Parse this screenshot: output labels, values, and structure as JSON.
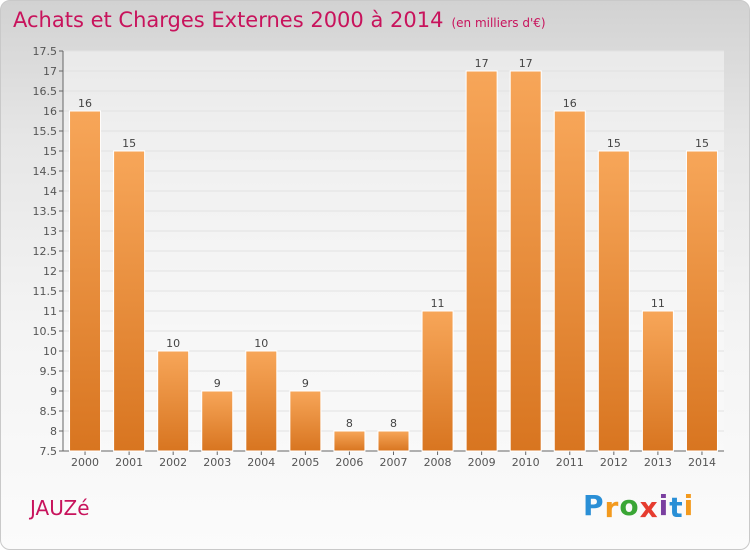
{
  "header": {
    "title": "Achats et Charges Externes 2000 à 2014",
    "subtitle": "(en milliers d'€)"
  },
  "footer": {
    "commune": "JAUZé",
    "logo_letters": [
      "P",
      "r",
      "o",
      "x",
      "i",
      "t",
      "i"
    ],
    "logo_colors": [
      "#2a8fd6",
      "#f39a1e",
      "#3aa635",
      "#e63c2f",
      "#7a3fa0",
      "#2a8fd6",
      "#f39a1e"
    ]
  },
  "colors": {
    "bar_top": "#f7a659",
    "bar_bottom": "#d87520",
    "bar_edge": "#ffffff",
    "text_accent": "#c8135c"
  },
  "chart_data": {
    "type": "bar",
    "title": "Achats et Charges Externes 2000 à 2014",
    "categories": [
      "2000",
      "2001",
      "2002",
      "2003",
      "2004",
      "2005",
      "2006",
      "2007",
      "2008",
      "2009",
      "2010",
      "2011",
      "2012",
      "2013",
      "2014"
    ],
    "values": [
      16,
      15,
      10,
      9,
      10,
      9,
      8,
      8,
      11,
      17,
      17,
      16,
      15,
      11,
      15
    ],
    "ylim": [
      7.5,
      17.5
    ],
    "yticks": [
      "7.5",
      "8",
      "8.5",
      "9",
      "9.5",
      "10",
      "10.5",
      "11",
      "11.5",
      "12",
      "12.5",
      "13",
      "13.5",
      "14",
      "14.5",
      "15",
      "15.5",
      "16",
      "16.5",
      "17",
      "17.5"
    ],
    "grid": true,
    "xlabel": "",
    "ylabel": ""
  }
}
